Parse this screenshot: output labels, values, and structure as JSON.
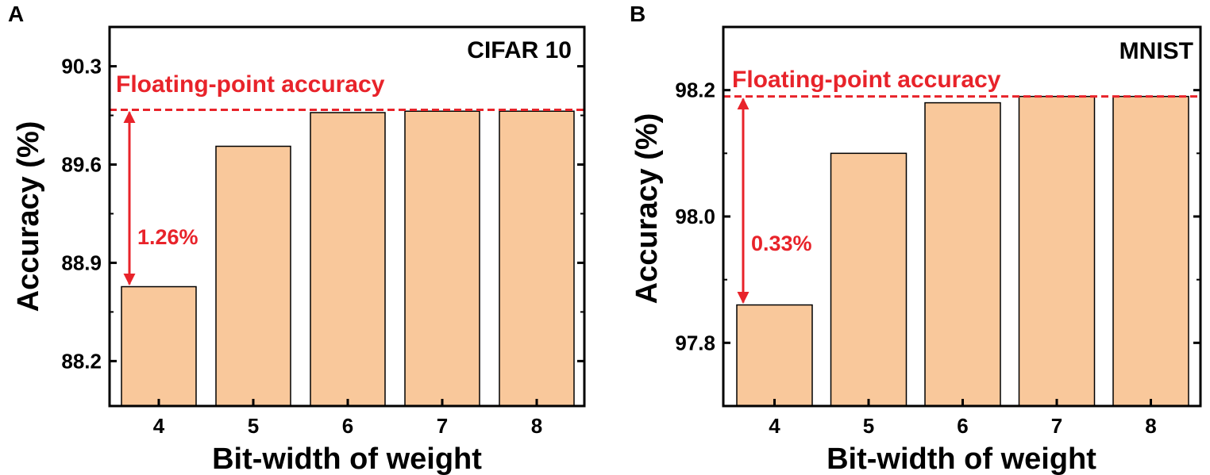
{
  "colors": {
    "bar_fill": "#F9C89B",
    "bar_stroke": "#000000",
    "reference": "#E8232A",
    "axis": "#000000"
  },
  "chart_data": [
    {
      "panel": "A",
      "type": "bar",
      "title": "CIFAR 10",
      "xlabel": "Bit-width of weight",
      "ylabel": "Accuracy (%)",
      "categories": [
        "4",
        "5",
        "6",
        "7",
        "8"
      ],
      "values": [
        88.73,
        89.73,
        89.97,
        89.98,
        89.98
      ],
      "yticks": [
        "88.2",
        "88.9",
        "89.6",
        "90.3"
      ],
      "ylim": [
        87.88,
        90.58
      ],
      "reference_line": {
        "label": "Floating-point accuracy",
        "value": 89.99
      },
      "gap_annotation": {
        "label": "1.26%",
        "from": 88.73,
        "to": 89.99
      }
    },
    {
      "panel": "B",
      "type": "bar",
      "title": "MNIST",
      "xlabel": "Bit-width of weight",
      "ylabel": "Accuracy (%)",
      "categories": [
        "4",
        "5",
        "6",
        "7",
        "8"
      ],
      "values": [
        97.86,
        98.1,
        98.18,
        98.19,
        98.19
      ],
      "yticks": [
        "97.8",
        "98.0",
        "98.2"
      ],
      "ylim": [
        97.7,
        98.3
      ],
      "reference_line": {
        "label": "Floating-point accuracy",
        "value": 98.19
      },
      "gap_annotation": {
        "label": "0.33%",
        "from": 97.86,
        "to": 98.19
      }
    }
  ]
}
